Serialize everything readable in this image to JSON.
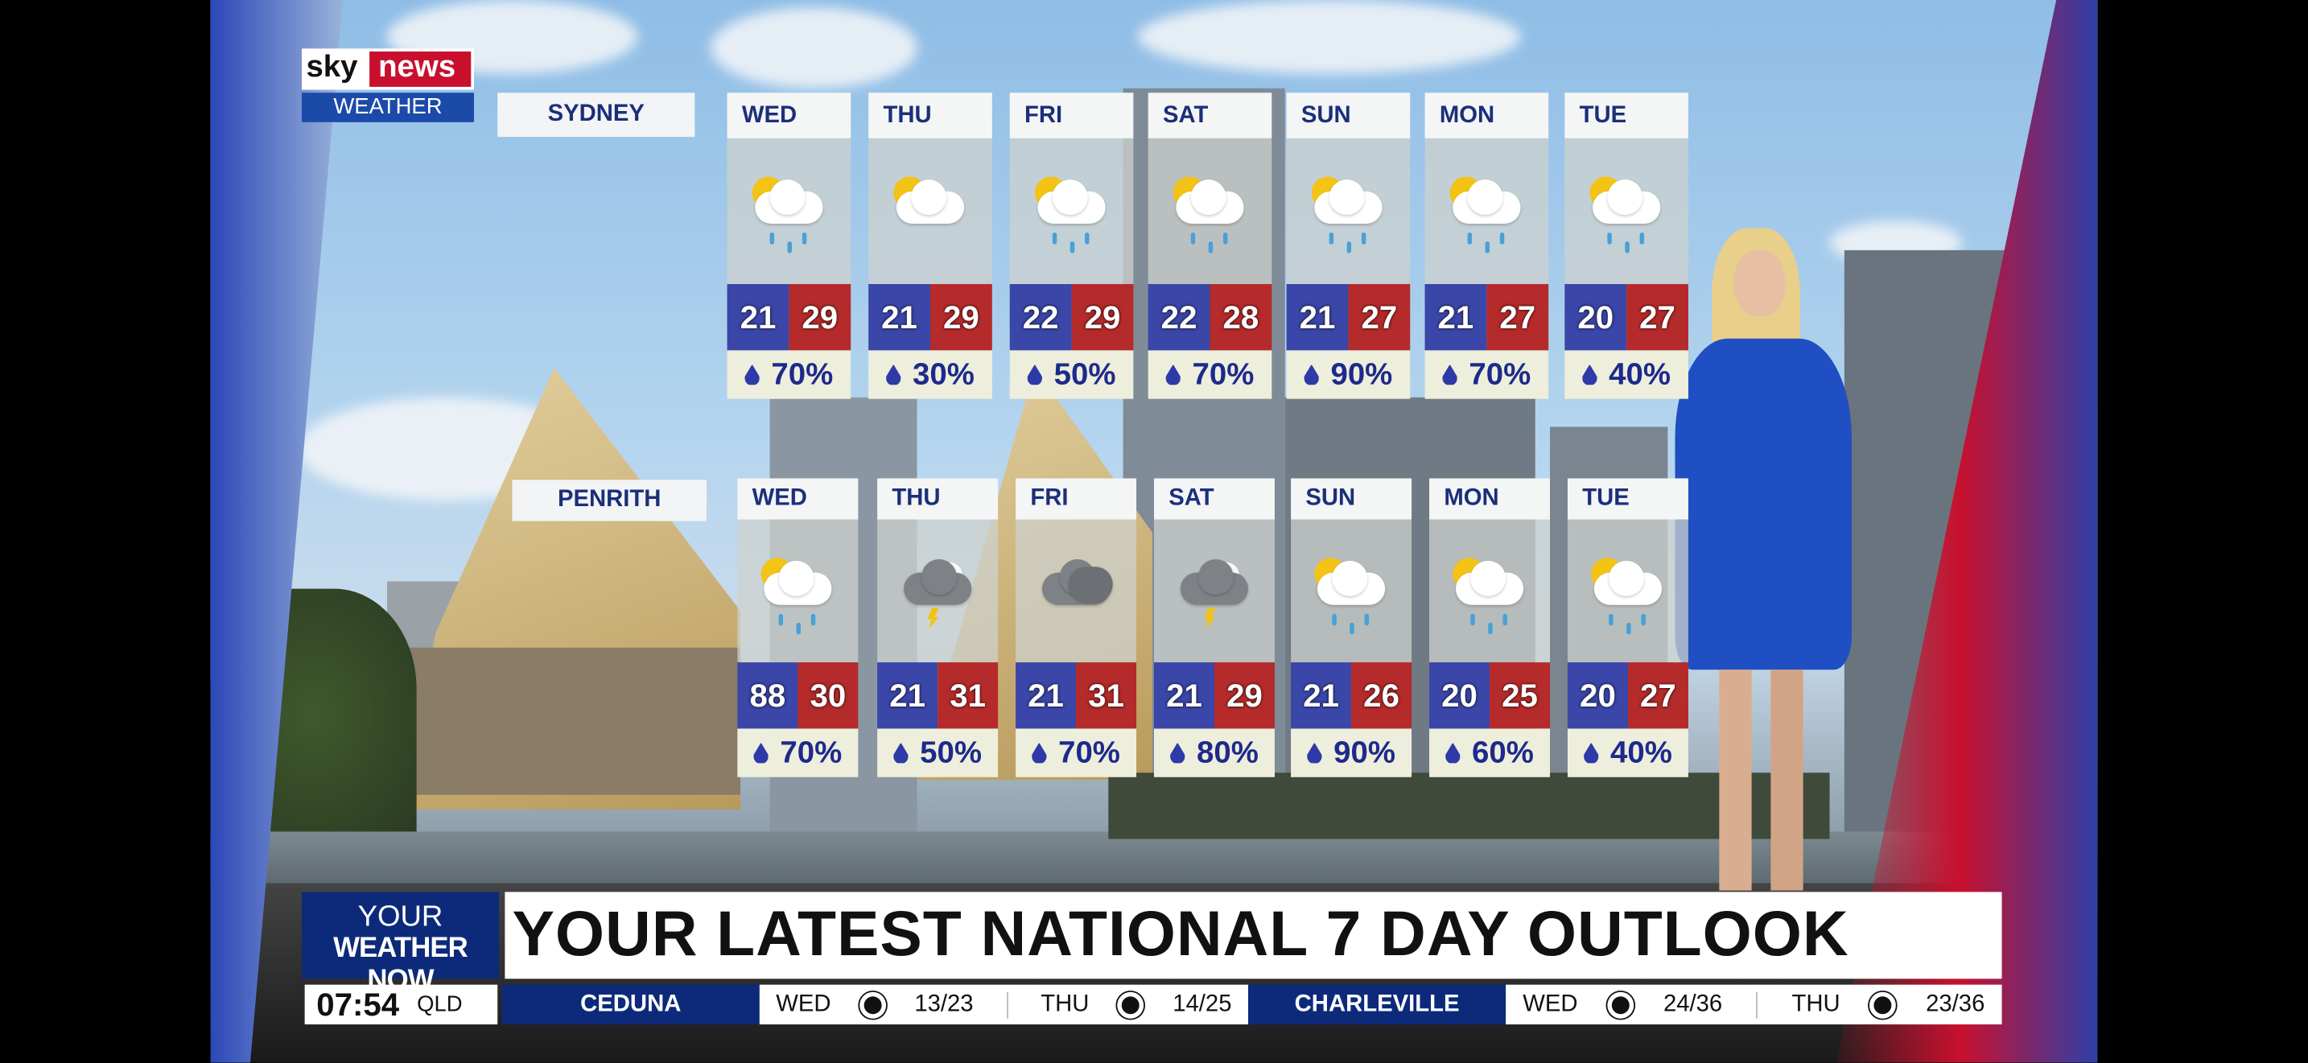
{
  "brand": {
    "logo_sky": "sky",
    "logo_news": "news",
    "logo_sub": "WEATHER"
  },
  "colors": {
    "low_temp": "#3a46a8",
    "high_temp": "#b52a2a",
    "brand_blue": "#0d2a7a",
    "sky_red": "#c8102e"
  },
  "sydney": {
    "label": "SYDNEY",
    "days": [
      {
        "day": "WED",
        "icon": "sun-cloud-rain-icon",
        "low": "21",
        "high": "29",
        "rain": "70%"
      },
      {
        "day": "THU",
        "icon": "sun-cloud-icon",
        "low": "21",
        "high": "29",
        "rain": "30%"
      },
      {
        "day": "FRI",
        "icon": "sun-cloud-rain-icon",
        "low": "22",
        "high": "29",
        "rain": "50%"
      },
      {
        "day": "SAT",
        "icon": "sun-cloud-rain-icon",
        "low": "22",
        "high": "28",
        "rain": "70%"
      },
      {
        "day": "SUN",
        "icon": "sun-cloud-rain-icon",
        "low": "21",
        "high": "27",
        "rain": "90%"
      },
      {
        "day": "MON",
        "icon": "sun-cloud-rain-icon",
        "low": "21",
        "high": "27",
        "rain": "70%"
      },
      {
        "day": "TUE",
        "icon": "sun-cloud-rain-icon",
        "low": "20",
        "high": "27",
        "rain": "40%"
      }
    ]
  },
  "penrith": {
    "label": "PENRITH",
    "days": [
      {
        "day": "WED",
        "icon": "sun-cloud-rain-icon",
        "low": "88",
        "high": "30",
        "rain": "70%"
      },
      {
        "day": "THU",
        "icon": "storm-cloud-icon",
        "low": "21",
        "high": "31",
        "rain": "50%"
      },
      {
        "day": "FRI",
        "icon": "dark-cloud-icon",
        "low": "21",
        "high": "31",
        "rain": "70%"
      },
      {
        "day": "SAT",
        "icon": "storm-cloud-icon",
        "low": "21",
        "high": "29",
        "rain": "80%"
      },
      {
        "day": "SUN",
        "icon": "sun-cloud-rain-icon",
        "low": "21",
        "high": "26",
        "rain": "90%"
      },
      {
        "day": "MON",
        "icon": "sun-cloud-rain-icon",
        "low": "20",
        "high": "25",
        "rain": "60%"
      },
      {
        "day": "TUE",
        "icon": "sun-cloud-rain-icon",
        "low": "20",
        "high": "27",
        "rain": "40%"
      }
    ]
  },
  "banner": {
    "tag_line1": "YOUR",
    "tag_line2": "WEATHER NOW",
    "headline": "YOUR LATEST NATIONAL 7 DAY OUTLOOK"
  },
  "ticker": {
    "time": "07:54",
    "zone": "QLD",
    "locations": [
      {
        "name": "CEDUNA",
        "d1": "WED",
        "t1": "13/23",
        "d2": "THU",
        "t2": "14/25",
        "icon": "sun-icon"
      },
      {
        "name": "CHARLEVILLE",
        "d1": "WED",
        "t1": "24/36",
        "d2": "THU",
        "t2": "23/36",
        "icon": "partly-cloudy-icon"
      }
    ]
  }
}
